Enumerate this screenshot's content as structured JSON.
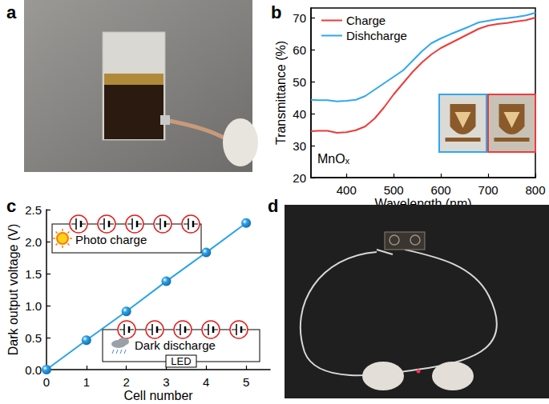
{
  "panel_labels": [
    "a",
    "b",
    "c",
    "d"
  ],
  "chart_data": [
    {
      "type": "line",
      "x_label": "Wavelength (nm)",
      "y_label": "Transmittance (%)",
      "x": [
        325,
        340,
        360,
        380,
        400,
        420,
        440,
        460,
        480,
        500,
        520,
        540,
        560,
        580,
        600,
        620,
        640,
        660,
        680,
        700,
        720,
        740,
        760,
        780,
        800
      ],
      "series": [
        {
          "name": "Charge",
          "color": "#ee3a3a",
          "values": [
            34.5,
            34.6,
            34.6,
            34.0,
            34.2,
            34.8,
            36.0,
            38.5,
            42.0,
            46.0,
            49.5,
            53.0,
            56.0,
            58.5,
            60.5,
            62.0,
            63.5,
            65.0,
            66.5,
            67.5,
            68.0,
            68.3,
            68.8,
            69.2,
            70.0
          ]
        },
        {
          "name": "Dishcharge",
          "color": "#30a8f0",
          "values": [
            44.3,
            44.2,
            44.2,
            43.8,
            44.0,
            44.3,
            45.5,
            47.5,
            49.5,
            51.5,
            53.5,
            56.5,
            59.5,
            62.0,
            63.5,
            64.8,
            66.0,
            67.2,
            68.5,
            69.0,
            69.5,
            69.8,
            70.2,
            70.7,
            71.5
          ]
        }
      ],
      "xlim": [
        325,
        800
      ],
      "xticks": [
        400,
        500,
        600,
        700,
        800
      ],
      "ylim": [
        20,
        73
      ],
      "yticks": [
        20,
        30,
        40,
        50,
        60,
        70
      ],
      "legend": "upper left",
      "annotations": [
        "MnOₓ"
      ]
    },
    {
      "type": "line",
      "x_label": "Cell number",
      "y_label": "Dark output voltage (V)",
      "x": [
        0,
        1,
        2,
        3,
        4,
        5
      ],
      "values": [
        0,
        0.46,
        0.91,
        1.38,
        1.83,
        2.29
      ],
      "color": "#2aa3e8",
      "marker": "circle",
      "xlim": [
        0,
        5.6
      ],
      "xticks": [
        0,
        1,
        2,
        3,
        4,
        5
      ],
      "ylim": [
        0,
        2.5
      ],
      "yticks": [
        {
          "value": 0,
          "label": "0.0"
        },
        0.5,
        {
          "value": 1,
          "label": "1.0"
        },
        1.5,
        {
          "value": 2,
          "label": "2.0"
        },
        2.5
      ],
      "annotations": [
        "Photo charge",
        "Dark discharge",
        "LED"
      ]
    }
  ]
}
